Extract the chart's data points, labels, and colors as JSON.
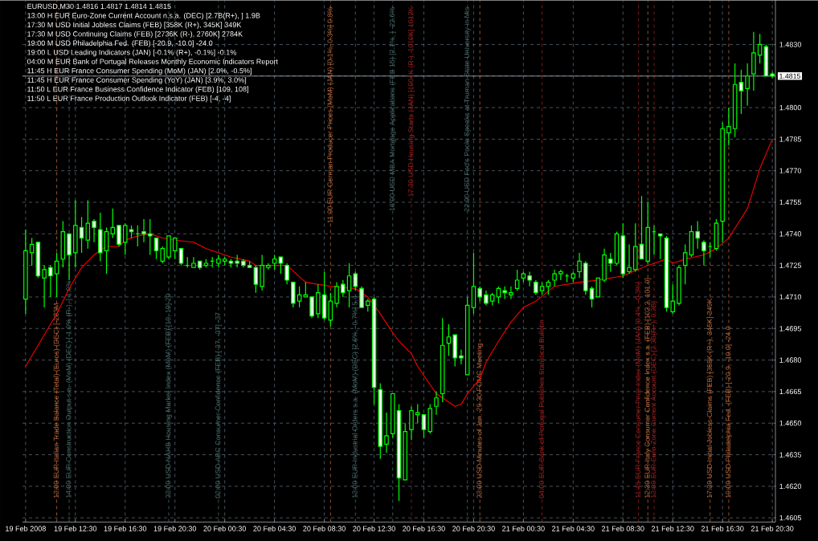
{
  "chart_data": {
    "type": "candlestick",
    "title": "EURUSD,M30  1.4816 1.4817 1.4814 1.4815",
    "color": "#00ff00",
    "grid": true,
    "annotations": [
      "13:00 H EUR Euro-Zone Current Account n.s.a. (DEC) [2.7B(R+), ] 1.9B",
      "17:30 M USD Initial Jobless Claims (FEB) [358K (R+), 345K] 349K",
      "17:30 M USD Continuing Claims (FEB) [2736K (R-), 2760K] 2784K",
      "19:00 M USD Philadelphia Fed. (FEB) [-20.9, -10.0] -24.0",
      "19:00 L USD Leading Indicators (JAN) [-0.1% (R+), -0.1%] -0.1%",
      "04:00 M EUR Bank of Portugal Releases Monthly Economic Indicators Report",
      "11:45 H EUR France Consumer Spending (MoM) (JAN) [2.0%, -0.5%]",
      "11:45 H EUR France Consumer Spending (YoY) (JAN) [3.9%, 3.0%]",
      "11:50 L EUR France Business Confidence Indicator (FEB) [109, 108]",
      "11:50 L EUR France Production Outlook Indicator (FEB) [-4, -4]"
    ],
    "xlim": [
      "2008-02-19T08:15",
      "2008-02-21T20:45"
    ],
    "xticks": [
      {
        "value": "2008-02-19T08:30",
        "label": "19 Feb 2008"
      },
      {
        "value": "2008-02-19T12:30",
        "label": "19 Feb 12:30"
      },
      {
        "value": "2008-02-19T16:30",
        "label": "19 Feb 16:30"
      },
      {
        "value": "2008-02-19T20:30",
        "label": "19 Feb 20:30"
      },
      {
        "value": "2008-02-20T00:30",
        "label": "20 Feb 00:30"
      },
      {
        "value": "2008-02-20T04:30",
        "label": "20 Feb 04:30"
      },
      {
        "value": "2008-02-20T08:30",
        "label": "20 Feb 08:30"
      },
      {
        "value": "2008-02-20T12:30",
        "label": "20 Feb 12:30"
      },
      {
        "value": "2008-02-20T16:30",
        "label": "20 Feb 16:30"
      },
      {
        "value": "2008-02-20T20:30",
        "label": "20 Feb 20:30"
      },
      {
        "value": "2008-02-21T00:30",
        "label": "21 Feb 00:30"
      },
      {
        "value": "2008-02-21T04:30",
        "label": "21 Feb 04:30"
      },
      {
        "value": "2008-02-21T08:30",
        "label": "21 Feb 08:30"
      },
      {
        "value": "2008-02-21T12:30",
        "label": "21 Feb 12:30"
      },
      {
        "value": "2008-02-21T16:30",
        "label": "21 Feb 16:30"
      },
      {
        "value": "2008-02-21T20:30",
        "label": "21 Feb 20:30"
      }
    ],
    "ylim": [
      1.4603,
      1.4851
    ],
    "yticks": [
      {
        "value": 1.4605,
        "label": "1.4605"
      },
      {
        "value": 1.462,
        "label": "1.4620"
      },
      {
        "value": 1.4635,
        "label": "1.4635"
      },
      {
        "value": 1.465,
        "label": "1.4650"
      },
      {
        "value": 1.4665,
        "label": "1.4665"
      },
      {
        "value": 1.468,
        "label": "1.4680"
      },
      {
        "value": 1.4695,
        "label": "1.4695"
      },
      {
        "value": 1.471,
        "label": "1.4710"
      },
      {
        "value": 1.4725,
        "label": "1.4725"
      },
      {
        "value": 1.474,
        "label": "1.4740"
      },
      {
        "value": 1.4755,
        "label": "1.4755"
      },
      {
        "value": 1.477,
        "label": "1.4770"
      },
      {
        "value": 1.4785,
        "label": "1.4785"
      },
      {
        "value": 1.48,
        "label": "1.4800"
      },
      {
        "value": 1.4815,
        "label": null
      },
      {
        "value": 1.483,
        "label": "1.4830"
      }
    ],
    "x": [
      "2008-02-19T08:30",
      "2008-02-19T09:00",
      "2008-02-19T09:30",
      "2008-02-19T10:00",
      "2008-02-19T10:30",
      "2008-02-19T11:00",
      "2008-02-19T11:30",
      "2008-02-19T12:00",
      "2008-02-19T12:30",
      "2008-02-19T13:00",
      "2008-02-19T13:30",
      "2008-02-19T14:00",
      "2008-02-19T14:30",
      "2008-02-19T15:00",
      "2008-02-19T15:30",
      "2008-02-19T16:00",
      "2008-02-19T16:30",
      "2008-02-19T17:00",
      "2008-02-19T17:30",
      "2008-02-19T18:00",
      "2008-02-19T18:30",
      "2008-02-19T19:00",
      "2008-02-19T19:30",
      "2008-02-19T20:00",
      "2008-02-19T20:30",
      "2008-02-19T21:00",
      "2008-02-19T21:30",
      "2008-02-19T22:00",
      "2008-02-19T22:30",
      "2008-02-19T23:00",
      "2008-02-19T23:30",
      "2008-02-20T00:00",
      "2008-02-20T00:30",
      "2008-02-20T01:00",
      "2008-02-20T01:30",
      "2008-02-20T02:00",
      "2008-02-20T02:30",
      "2008-02-20T03:00",
      "2008-02-20T03:30",
      "2008-02-20T04:00",
      "2008-02-20T04:30",
      "2008-02-20T05:00",
      "2008-02-20T05:30",
      "2008-02-20T06:00",
      "2008-02-20T06:30",
      "2008-02-20T07:00",
      "2008-02-20T07:30",
      "2008-02-20T08:00",
      "2008-02-20T08:30",
      "2008-02-20T09:00",
      "2008-02-20T09:30",
      "2008-02-20T10:00",
      "2008-02-20T10:30",
      "2008-02-20T11:00",
      "2008-02-20T11:30",
      "2008-02-20T12:00",
      "2008-02-20T12:30",
      "2008-02-20T13:00",
      "2008-02-20T13:30",
      "2008-02-20T14:00",
      "2008-02-20T14:30",
      "2008-02-20T15:00",
      "2008-02-20T15:30",
      "2008-02-20T16:00",
      "2008-02-20T16:30",
      "2008-02-20T17:00",
      "2008-02-20T17:30",
      "2008-02-20T18:00",
      "2008-02-20T18:30",
      "2008-02-20T19:00",
      "2008-02-20T19:30",
      "2008-02-20T20:00",
      "2008-02-20T20:30",
      "2008-02-20T21:00",
      "2008-02-20T21:30",
      "2008-02-20T22:00",
      "2008-02-20T22:30",
      "2008-02-20T23:00",
      "2008-02-20T23:30",
      "2008-02-21T00:00",
      "2008-02-21T00:30",
      "2008-02-21T01:00",
      "2008-02-21T01:30",
      "2008-02-21T02:00",
      "2008-02-21T02:30",
      "2008-02-21T03:00",
      "2008-02-21T03:30",
      "2008-02-21T04:00",
      "2008-02-21T04:30",
      "2008-02-21T05:00",
      "2008-02-21T05:30",
      "2008-02-21T06:00",
      "2008-02-21T06:30",
      "2008-02-21T07:00",
      "2008-02-21T07:30",
      "2008-02-21T08:00",
      "2008-02-21T08:30",
      "2008-02-21T09:00",
      "2008-02-21T09:30",
      "2008-02-21T10:00",
      "2008-02-21T10:30",
      "2008-02-21T11:00",
      "2008-02-21T11:30",
      "2008-02-21T12:00",
      "2008-02-21T12:30",
      "2008-02-21T13:00",
      "2008-02-21T13:30",
      "2008-02-21T14:00",
      "2008-02-21T14:30",
      "2008-02-21T15:00",
      "2008-02-21T15:30",
      "2008-02-21T16:00",
      "2008-02-21T16:30",
      "2008-02-21T17:00",
      "2008-02-21T17:30",
      "2008-02-21T18:00",
      "2008-02-21T18:30",
      "2008-02-21T19:00",
      "2008-02-21T19:30",
      "2008-02-21T20:00",
      "2008-02-21T20:30"
    ],
    "ohlc": [
      [
        1.4709,
        1.4742,
        1.4702,
        1.4732
      ],
      [
        1.4731,
        1.4738,
        1.4725,
        1.4735
      ],
      [
        1.4736,
        1.4736,
        1.4719,
        1.472
      ],
      [
        1.4719,
        1.4725,
        1.4705,
        1.4723
      ],
      [
        1.4724,
        1.4725,
        1.471,
        1.472
      ],
      [
        1.4721,
        1.4731,
        1.471,
        1.4727
      ],
      [
        1.4728,
        1.4746,
        1.4724,
        1.4741
      ],
      [
        1.474,
        1.474,
        1.4718,
        1.473
      ],
      [
        1.4731,
        1.4756,
        1.4724,
        1.4744
      ],
      [
        1.4743,
        1.4748,
        1.4731,
        1.4738
      ],
      [
        1.4737,
        1.4756,
        1.4733,
        1.4745
      ],
      [
        1.4746,
        1.4747,
        1.4736,
        1.4743
      ],
      [
        1.4742,
        1.475,
        1.4727,
        1.4731
      ],
      [
        1.4732,
        1.4743,
        1.4721,
        1.4741
      ],
      [
        1.474,
        1.4752,
        1.4738,
        1.4743
      ],
      [
        1.4744,
        1.4744,
        1.4734,
        1.4735
      ],
      [
        1.4736,
        1.4745,
        1.473,
        1.4744
      ],
      [
        1.4742,
        1.4744,
        1.4738,
        1.4741
      ],
      [
        1.474,
        1.4744,
        1.4734,
        1.474
      ],
      [
        1.4741,
        1.4747,
        1.4736,
        1.474
      ],
      [
        1.474,
        1.4747,
        1.473,
        1.4739
      ],
      [
        1.4738,
        1.4738,
        1.4728,
        1.4732
      ],
      [
        1.4727,
        1.4734,
        1.4726,
        1.4733
      ],
      [
        1.4729,
        1.4739,
        1.4728,
        1.4739
      ],
      [
        1.4732,
        1.4738,
        1.4728,
        1.4738
      ],
      [
        1.4733,
        1.4733,
        1.4725,
        1.4726
      ],
      [
        1.4725,
        1.4729,
        1.4724,
        1.4725
      ],
      [
        1.4724,
        1.4729,
        1.4724,
        1.4726
      ],
      [
        1.4727,
        1.4727,
        1.4723,
        1.4724
      ],
      [
        1.4725,
        1.4728,
        1.4724,
        1.4726
      ],
      [
        1.4727,
        1.4729,
        1.4724,
        1.4727
      ],
      [
        1.4726,
        1.473,
        1.4724,
        1.4728
      ],
      [
        1.4727,
        1.4729,
        1.4725,
        1.4728
      ],
      [
        1.4727,
        1.4728,
        1.4724,
        1.4726
      ],
      [
        1.4727,
        1.473,
        1.4724,
        1.4726
      ],
      [
        1.4727,
        1.4728,
        1.4724,
        1.4725
      ],
      [
        1.4725,
        1.4727,
        1.4724,
        1.4724
      ],
      [
        1.4724,
        1.4725,
        1.4712,
        1.4716
      ],
      [
        1.4715,
        1.473,
        1.4713,
        1.4725
      ],
      [
        1.4724,
        1.4726,
        1.4723,
        1.4725
      ],
      [
        1.4726,
        1.473,
        1.4723,
        1.4728
      ],
      [
        1.4729,
        1.4729,
        1.4721,
        1.4726
      ],
      [
        1.4725,
        1.4726,
        1.4716,
        1.4718
      ],
      [
        1.4717,
        1.4717,
        1.4705,
        1.4707
      ],
      [
        1.4708,
        1.4715,
        1.4705,
        1.4711
      ],
      [
        1.471,
        1.4717,
        1.471,
        1.4711
      ],
      [
        1.471,
        1.471,
        1.47,
        1.4701
      ],
      [
        1.4702,
        1.4716,
        1.47,
        1.4712
      ],
      [
        1.4711,
        1.4722,
        1.4699,
        1.47
      ],
      [
        1.4699,
        1.4712,
        1.4696,
        1.4708
      ],
      [
        1.4707,
        1.4717,
        1.4705,
        1.4715
      ],
      [
        1.4716,
        1.4718,
        1.471,
        1.4712
      ],
      [
        1.4713,
        1.4726,
        1.4705,
        1.472
      ],
      [
        1.4721,
        1.4722,
        1.4713,
        1.4715
      ],
      [
        1.4714,
        1.4715,
        1.4705,
        1.4705
      ],
      [
        1.4706,
        1.4709,
        1.4703,
        1.4708
      ],
      [
        1.4709,
        1.471,
        1.4659,
        1.4667
      ],
      [
        1.4666,
        1.4669,
        1.4633,
        1.4639
      ],
      [
        1.464,
        1.4655,
        1.4636,
        1.4644
      ],
      [
        1.4645,
        1.4664,
        1.4643,
        1.4664
      ],
      [
        1.4656,
        1.4659,
        1.4613,
        1.4624
      ],
      [
        1.4623,
        1.465,
        1.4623,
        1.4646
      ],
      [
        1.4647,
        1.4658,
        1.4642,
        1.4656
      ],
      [
        1.4654,
        1.4659,
        1.465,
        1.4655
      ],
      [
        1.4654,
        1.4654,
        1.4643,
        1.4647
      ],
      [
        1.4646,
        1.4659,
        1.4645,
        1.4657
      ],
      [
        1.4658,
        1.4665,
        1.4654,
        1.4662
      ],
      [
        1.4664,
        1.47,
        1.466,
        1.4687
      ],
      [
        1.4688,
        1.4697,
        1.4682,
        1.4691
      ],
      [
        1.4692,
        1.4692,
        1.4677,
        1.4681
      ],
      [
        1.4682,
        1.4685,
        1.4678,
        1.4681
      ],
      [
        1.4673,
        1.471,
        1.4673,
        1.4706
      ],
      [
        1.4705,
        1.4731,
        1.4702,
        1.4715
      ],
      [
        1.4714,
        1.4715,
        1.4708,
        1.471
      ],
      [
        1.4711,
        1.4713,
        1.4706,
        1.4707
      ],
      [
        1.4708,
        1.4712,
        1.4706,
        1.4711
      ],
      [
        1.471,
        1.4715,
        1.4707,
        1.4714
      ],
      [
        1.4713,
        1.4715,
        1.4709,
        1.4712
      ],
      [
        1.4711,
        1.4715,
        1.4709,
        1.4712
      ],
      [
        1.4714,
        1.4723,
        1.4713,
        1.4718
      ],
      [
        1.4719,
        1.4722,
        1.4717,
        1.4721
      ],
      [
        1.472,
        1.4722,
        1.4715,
        1.4718
      ],
      [
        1.4717,
        1.4718,
        1.4711,
        1.4712
      ],
      [
        1.4713,
        1.4717,
        1.4711,
        1.4715
      ],
      [
        1.4715,
        1.4718,
        1.4711,
        1.4717
      ],
      [
        1.4718,
        1.4723,
        1.4715,
        1.4721
      ],
      [
        1.4721,
        1.4723,
        1.4718,
        1.4722
      ],
      [
        1.472,
        1.4721,
        1.4717,
        1.472
      ],
      [
        1.4719,
        1.4722,
        1.4717,
        1.4721
      ],
      [
        1.4722,
        1.4731,
        1.4719,
        1.4727
      ],
      [
        1.4726,
        1.4727,
        1.4711,
        1.4713
      ],
      [
        1.4714,
        1.4715,
        1.4705,
        1.4709
      ],
      [
        1.471,
        1.4719,
        1.471,
        1.4719
      ],
      [
        1.4718,
        1.4733,
        1.4717,
        1.473
      ],
      [
        1.4728,
        1.4731,
        1.4722,
        1.4726
      ],
      [
        1.4726,
        1.4741,
        1.4725,
        1.474
      ],
      [
        1.4739,
        1.4745,
        1.4719,
        1.4721
      ],
      [
        1.4722,
        1.4735,
        1.4721,
        1.4724
      ],
      [
        1.4723,
        1.4745,
        1.4722,
        1.4734
      ],
      [
        1.4735,
        1.4758,
        1.4728,
        1.4728
      ],
      [
        1.4727,
        1.4755,
        1.4726,
        1.4743
      ],
      [
        1.4741,
        1.4744,
        1.473,
        1.4741
      ],
      [
        1.474,
        1.474,
        1.4728,
        1.4739
      ],
      [
        1.4738,
        1.4739,
        1.4703,
        1.4705
      ],
      [
        1.4703,
        1.4716,
        1.4702,
        1.4708
      ],
      [
        1.4707,
        1.4725,
        1.4706,
        1.4724
      ],
      [
        1.4725,
        1.4735,
        1.4716,
        1.4731
      ],
      [
        1.473,
        1.4744,
        1.4729,
        1.4741
      ],
      [
        1.4741,
        1.4746,
        1.4733,
        1.4738
      ],
      [
        1.4736,
        1.4737,
        1.4725,
        1.4732
      ],
      [
        1.4734,
        1.4736,
        1.4729,
        1.4734
      ],
      [
        1.4733,
        1.4747,
        1.4732,
        1.4745
      ],
      [
        1.4746,
        1.4793,
        1.4736,
        1.479
      ],
      [
        1.4788,
        1.48,
        1.4782,
        1.4791
      ],
      [
        1.479,
        1.4821,
        1.4786,
        1.4811
      ],
      [
        1.4812,
        1.4818,
        1.4797,
        1.4808
      ],
      [
        1.4809,
        1.4821,
        1.4801,
        1.4815
      ],
      [
        1.4816,
        1.4836,
        1.4808,
        1.4826
      ],
      [
        1.4825,
        1.4835,
        1.4821,
        1.483
      ],
      [
        1.4829,
        1.483,
        1.4815,
        1.4815
      ],
      [
        1.4816,
        1.4817,
        1.4814,
        1.4815
      ]
    ],
    "series": [
      {
        "type": "line",
        "color": "#ff0000",
        "x": [
          "2008-02-19T08:30",
          "2008-02-19T10:30",
          "2008-02-19T11:00",
          "2008-02-19T12:00",
          "2008-02-19T13:00",
          "2008-02-19T14:00",
          "2008-02-19T15:00",
          "2008-02-19T16:00",
          "2008-02-19T16:30",
          "2008-02-19T17:30",
          "2008-02-19T18:30",
          "2008-02-19T19:30",
          "2008-02-19T20:30",
          "2008-02-19T22:00",
          "2008-02-19T23:00",
          "2008-02-20T00:00",
          "2008-02-20T01:00",
          "2008-02-20T02:30",
          "2008-02-20T03:00",
          "2008-02-20T04:00",
          "2008-02-20T05:30",
          "2008-02-20T07:00",
          "2008-02-20T09:00",
          "2008-02-20T11:00",
          "2008-02-20T12:00",
          "2008-02-20T13:00",
          "2008-02-20T14:00",
          "2008-02-20T14:30",
          "2008-02-20T15:30",
          "2008-02-20T16:00",
          "2008-02-20T17:30",
          "2008-02-20T18:30",
          "2008-02-20T19:00",
          "2008-02-20T19:30",
          "2008-02-20T20:00",
          "2008-02-20T21:00",
          "2008-02-20T21:30",
          "2008-02-20T22:30",
          "2008-02-20T23:30",
          "2008-02-21T00:30",
          "2008-02-21T01:30",
          "2008-02-21T03:00",
          "2008-02-21T05:00",
          "2008-02-21T06:30",
          "2008-02-21T08:30",
          "2008-02-21T10:30",
          "2008-02-21T12:00",
          "2008-02-21T12:30",
          "2008-02-21T13:30",
          "2008-02-21T15:00",
          "2008-02-21T16:00",
          "2008-02-21T17:00",
          "2008-02-21T18:30",
          "2008-02-21T19:30",
          "2008-02-21T20:30"
        ],
        "values": [
          1.4677,
          1.4697,
          1.4702,
          1.4714,
          1.4724,
          1.473,
          1.4734,
          1.4734,
          1.4737,
          1.4739,
          1.474,
          1.4738,
          1.4737,
          1.4736,
          1.4733,
          1.4731,
          1.4729,
          1.4727,
          1.4725,
          1.4725,
          1.4725,
          1.4717,
          1.4715,
          1.4714,
          1.471,
          1.4702,
          1.4693,
          1.4689,
          1.4683,
          1.4677,
          1.4664,
          1.466,
          1.4658,
          1.4659,
          1.4664,
          1.4671,
          1.4679,
          1.4689,
          1.4698,
          1.4705,
          1.4708,
          1.4715,
          1.4717,
          1.4718,
          1.472,
          1.4725,
          1.4728,
          1.4726,
          1.4728,
          1.473,
          1.4733,
          1.4738,
          1.4752,
          1.4771,
          1.4785
        ]
      }
    ],
    "ref_lines": [
      {
        "axis": "y",
        "value": 1.4815,
        "label": "1.4815",
        "color": "#a0a8b0",
        "line_style": "solid"
      },
      {
        "axis": "x",
        "value": "2008-02-19T11:00",
        "label": "13:00 EUR Italian Trade Balance (Total) (Euros) (DEC) [-283M",
        "color": "#b8683c",
        "line_style": "dashed"
      },
      {
        "axis": "x",
        "value": "2008-02-19T12:00",
        "label": "14:00 EUR Construction Output s.a. (MoM) (DEC) [-1.0% (R-), ] 1.0%",
        "color": "#4a6a6a",
        "line_style": "dashed"
      },
      {
        "axis": "x",
        "value": "2008-02-19T20:00",
        "label": "23:00 USD NAHB Housing Market Index (MoM) (FEB) [19, 19] 20",
        "color": "#4a6a6a",
        "line_style": "dashed"
      },
      {
        "axis": "x",
        "value": "2008-02-20T00:00",
        "label": "02:00 USD ABC Consumer Confidence (FEB) [-37, -37] -37",
        "color": "#4a6a6a",
        "line_style": "dashed"
      },
      {
        "axis": "x",
        "value": "2008-02-20T09:00",
        "label": "11:00 EUR German Producer Prices (MoM) (JAN) [0.1%, 0.3%] 0.8%",
        "color": "#b8683c",
        "line_style": "dashed"
      },
      {
        "axis": "x",
        "value": "2008-02-20T11:00",
        "label": "13:00 EUR Industrial Orders s.a. (MoM) (DEC) [2.6%, -0.7%] 5.4",
        "color": "#4a6a6a",
        "line_style": "dashed"
      },
      {
        "axis": "x",
        "value": "2008-02-20T14:00",
        "label": "16:00 USD MBA Mortgage Applications (FEB 15) [2.1%, ] -22.6%",
        "color": "#4a6a6a",
        "line_style": "dashed"
      },
      {
        "axis": "x",
        "value": "2008-02-20T15:30",
        "label": "17:30 USD Housing Starts (JAN) [1004K (R-), 1010K] 1012K",
        "color": "#9a2020",
        "line_style": "dashed"
      },
      {
        "axis": "x",
        "value": "2008-02-20T20:00",
        "label": "22:00 USD Fed's Poole Speaks at Truman State University in Mis",
        "color": "#4a6a6a",
        "line_style": "dashed"
      },
      {
        "axis": "x",
        "value": "2008-02-20T21:00",
        "label": "23:00 USD Minutes of Jan. 29-30 FOMC Meeting",
        "color": "#b8683c",
        "line_style": "dashed"
      },
      {
        "axis": "x",
        "value": "2008-02-21T02:00",
        "label": "04:00 EUR Bank of Portugal Publishes Statistical Bulletin",
        "color": "#9a2020",
        "line_style": "dashed"
      },
      {
        "axis": "x",
        "value": "2008-02-21T09:45",
        "label": "11:45 EUR France Consumer Price Index (MoM) (JAN) [0.4%, -0.3%]",
        "color": "#9a2020",
        "line_style": "dashed"
      },
      {
        "axis": "x",
        "value": "2008-02-21T10:30",
        "label": "12:30 EUR Italy Consumer Confidence Index s.a. (FEB) [102.2, 101.0]",
        "color": "#b8683c",
        "line_style": "dashed"
      },
      {
        "axis": "x",
        "value": "2008-02-21T11:00",
        "label": "13:00 EUR Euro-Zone Current Account (DEC) [2.3B(R+), 0.2B]",
        "color": "#9a2020",
        "line_style": "dashed"
      },
      {
        "axis": "x",
        "value": "2008-02-21T15:30",
        "label": "17:30 USD Initial Jobless Claims (FEB) [358K (R+), 345K] 349K",
        "color": "#b8683c",
        "line_style": "dashed"
      },
      {
        "axis": "x",
        "value": "2008-02-21T17:00",
        "label": "19:00 USD Philadelphia Fed. (FEB) [-20.9, -10.0] -24.0",
        "color": "#b8683c",
        "line_style": "dashed"
      }
    ]
  }
}
